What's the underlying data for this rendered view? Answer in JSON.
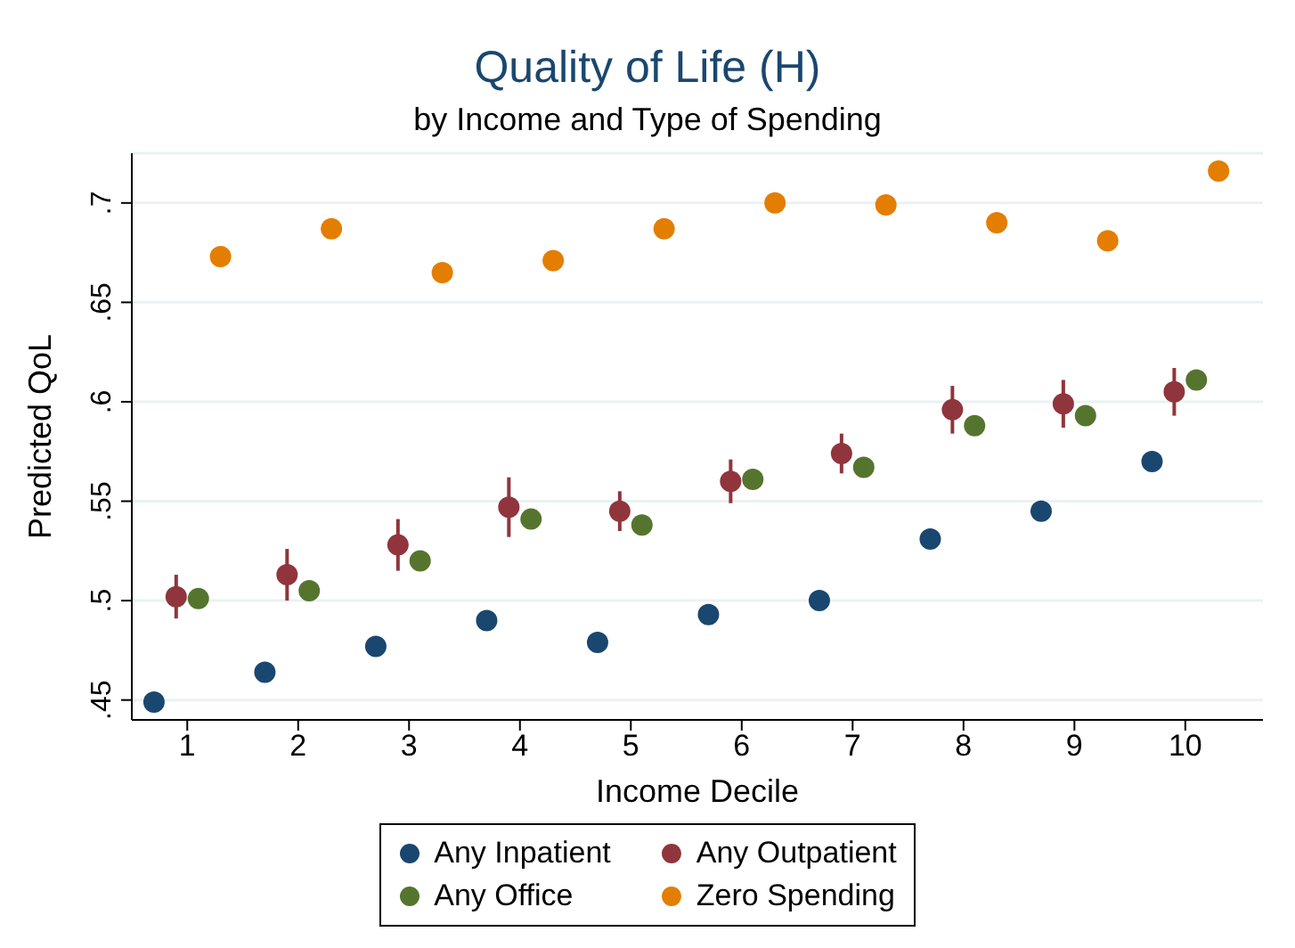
{
  "chart_data": {
    "type": "scatter",
    "title": "Quality of Life (H)",
    "subtitle": "by Income and Type of Spending",
    "xlabel": "Income Decile",
    "ylabel": "Predicted QoL",
    "xlim": [
      0.5,
      10.7
    ],
    "xticks": [
      1,
      2,
      3,
      4,
      5,
      6,
      7,
      8,
      9,
      10
    ],
    "ylim": [
      0.44,
      0.725
    ],
    "yticks": [
      {
        "value": 0.45,
        "label": ".45"
      },
      {
        "value": 0.5,
        "label": ".5"
      },
      {
        "value": 0.55,
        "label": ".55"
      },
      {
        "value": 0.6,
        "label": ".6"
      },
      {
        "value": 0.65,
        "label": ".65"
      },
      {
        "value": 0.7,
        "label": ".7"
      }
    ],
    "grid": "y",
    "legend": "bottom",
    "marker": "circle",
    "series": [
      {
        "name": "Any Inpatient",
        "color": "#1a476f",
        "x": [
          0.7,
          1.7,
          2.7,
          3.7,
          4.7,
          5.7,
          6.7,
          7.7,
          8.7,
          9.7
        ],
        "values": [
          0.449,
          0.464,
          0.477,
          0.49,
          0.479,
          0.493,
          0.5,
          0.531,
          0.545,
          0.57
        ]
      },
      {
        "name": "Any Outpatient",
        "color": "#90353b",
        "x": [
          0.9,
          1.9,
          2.9,
          3.9,
          4.9,
          5.9,
          6.9,
          7.9,
          8.9,
          9.9
        ],
        "values": [
          0.502,
          0.513,
          0.528,
          0.547,
          0.545,
          0.56,
          0.574,
          0.596,
          0.599,
          0.605
        ],
        "errors": [
          0.011,
          0.013,
          0.013,
          0.015,
          0.01,
          0.011,
          0.01,
          0.012,
          0.012,
          0.012
        ]
      },
      {
        "name": "Any Office",
        "color": "#55752f",
        "x": [
          1.1,
          2.1,
          3.1,
          4.1,
          5.1,
          6.1,
          7.1,
          8.1,
          9.1,
          10.1
        ],
        "values": [
          0.501,
          0.505,
          0.52,
          0.541,
          0.538,
          0.561,
          0.567,
          0.588,
          0.593,
          0.611
        ]
      },
      {
        "name": "Zero Spending",
        "color": "#e37e00",
        "x": [
          1.3,
          2.3,
          3.3,
          4.3,
          5.3,
          6.3,
          7.3,
          8.3,
          9.3,
          10.3
        ],
        "values": [
          0.673,
          0.687,
          0.665,
          0.671,
          0.687,
          0.7,
          0.699,
          0.69,
          0.681,
          0.716
        ]
      }
    ]
  }
}
